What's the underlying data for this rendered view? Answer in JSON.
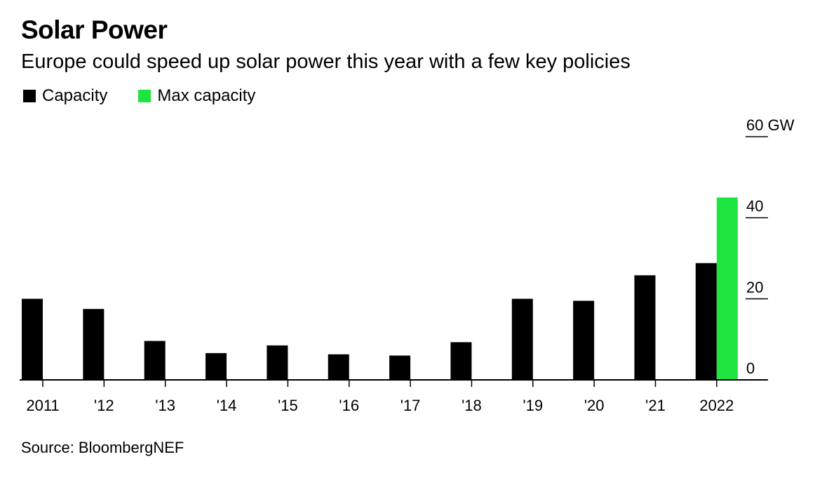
{
  "header": {
    "title": "Solar Power",
    "subtitle": "Europe could speed up solar power this year with a few key policies"
  },
  "legend": [
    {
      "label": "Capacity",
      "color": "#000000"
    },
    {
      "label": "Max capacity",
      "color": "#1de43f"
    }
  ],
  "source": "Source: BloombergNEF",
  "chart_data": {
    "type": "bar",
    "categories": [
      "2011",
      "'12",
      "'13",
      "'14",
      "'15",
      "'16",
      "'17",
      "'18",
      "'19",
      "'20",
      "'21",
      "2022"
    ],
    "series": [
      {
        "name": "Capacity",
        "color": "#000000",
        "values": [
          20.0,
          17.5,
          9.6,
          6.6,
          8.5,
          6.3,
          6.0,
          9.3,
          20.0,
          19.5,
          25.8,
          28.8
        ]
      },
      {
        "name": "Max capacity",
        "color": "#1de43f",
        "values": [
          null,
          null,
          null,
          null,
          null,
          null,
          null,
          null,
          null,
          null,
          null,
          45.0
        ]
      }
    ],
    "ylim": [
      0,
      60
    ],
    "yticks": [
      0,
      20,
      40,
      60
    ],
    "ytick_labels": [
      "0",
      "20",
      "40",
      "60 GW"
    ],
    "yaxis_position": "right",
    "grid": false
  }
}
